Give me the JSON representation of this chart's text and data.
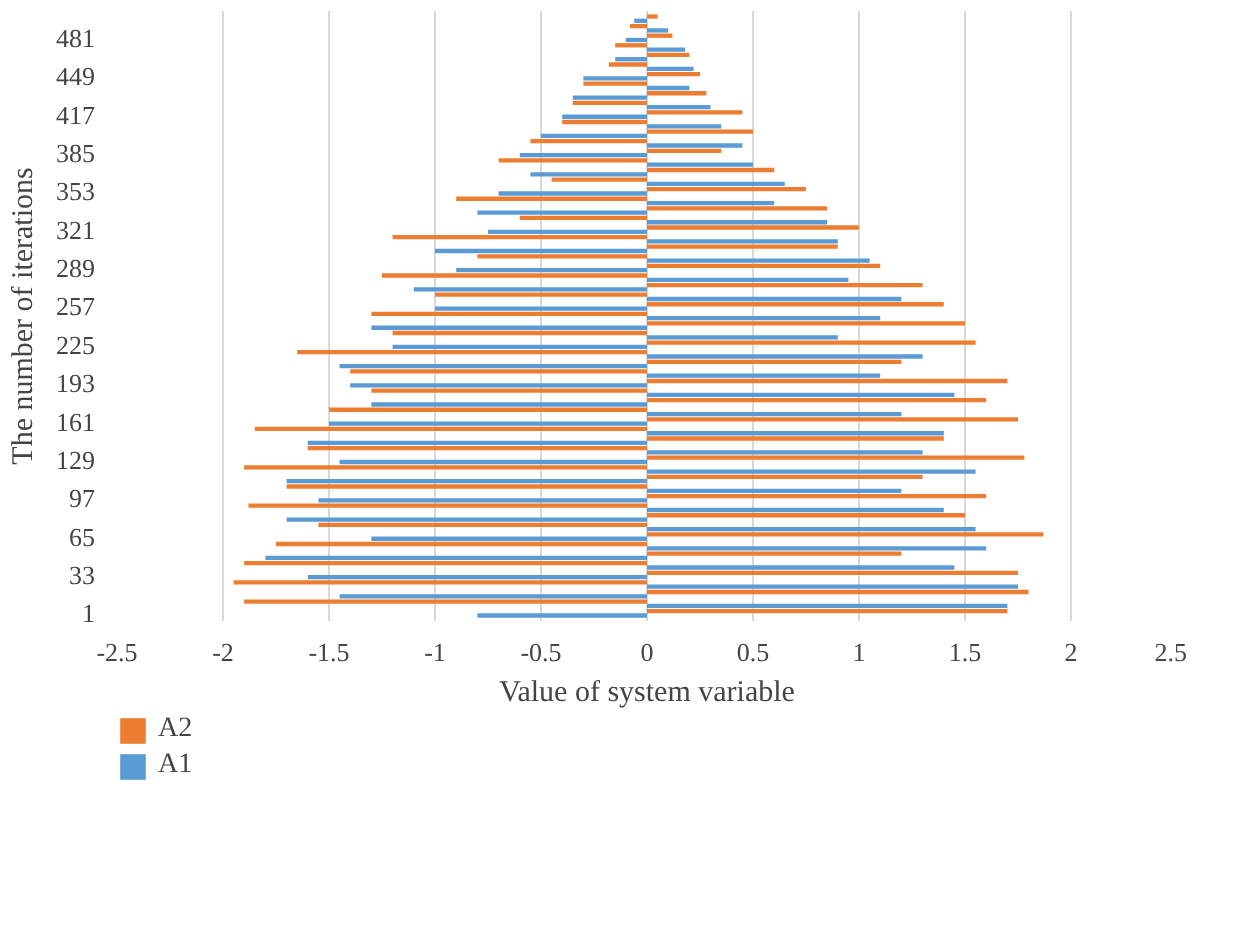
{
  "chart_data": {
    "type": "bar",
    "orientation": "horizontal",
    "xlabel": "Value of system variable",
    "ylabel": "The number of iterations",
    "categories": [
      null,
      null,
      "481",
      null,
      null,
      null,
      "449",
      null,
      null,
      null,
      "417",
      null,
      null,
      null,
      "385",
      null,
      null,
      null,
      "353",
      null,
      null,
      null,
      "321",
      null,
      null,
      null,
      "289",
      null,
      null,
      null,
      "257",
      null,
      null,
      null,
      "225",
      null,
      null,
      null,
      "193",
      null,
      null,
      null,
      "161",
      null,
      null,
      null,
      "129",
      null,
      null,
      null,
      "97",
      null,
      null,
      null,
      "65",
      null,
      null,
      null,
      "33",
      null,
      null,
      null,
      "1"
    ],
    "series": [
      {
        "name": "A2",
        "color": "#ed7d31",
        "values": [
          0.05,
          -0.08,
          0.12,
          -0.15,
          0.2,
          -0.18,
          0.25,
          -0.3,
          0.28,
          -0.35,
          0.45,
          -0.4,
          0.5,
          -0.55,
          0.35,
          -0.7,
          0.6,
          -0.45,
          0.75,
          -0.9,
          0.85,
          -0.6,
          1.0,
          -1.2,
          0.9,
          -0.8,
          1.1,
          -1.25,
          1.3,
          -1.0,
          1.4,
          -1.3,
          1.5,
          -1.2,
          1.55,
          -1.65,
          1.2,
          -1.4,
          1.7,
          -1.3,
          1.6,
          -1.5,
          1.75,
          -1.85,
          1.4,
          -1.6,
          1.78,
          -1.9,
          1.3,
          -1.7,
          1.6,
          -1.88,
          1.5,
          -1.55,
          1.87,
          -1.75,
          1.2,
          -1.9,
          1.75,
          -1.95,
          1.8,
          -1.9,
          1.7
        ]
      },
      {
        "name": "A1",
        "color": "#5b9bd5",
        "values": [
          -0.06,
          0.1,
          -0.1,
          0.18,
          -0.15,
          0.22,
          -0.3,
          0.2,
          -0.35,
          0.3,
          -0.4,
          0.35,
          -0.5,
          0.45,
          -0.6,
          0.5,
          -0.55,
          0.65,
          -0.7,
          0.6,
          -0.8,
          0.85,
          -0.75,
          0.9,
          -1.0,
          1.05,
          -0.9,
          0.95,
          -1.1,
          1.2,
          -1.0,
          1.1,
          -1.3,
          0.9,
          -1.2,
          1.3,
          -1.45,
          1.1,
          -1.4,
          1.45,
          -1.3,
          1.2,
          -1.5,
          1.4,
          -1.6,
          1.3,
          -1.45,
          1.55,
          -1.7,
          1.2,
          -1.55,
          1.4,
          -1.7,
          1.55,
          -1.3,
          1.6,
          -1.8,
          1.45,
          -1.6,
          1.75,
          -1.45,
          1.7,
          -0.8
        ]
      }
    ],
    "xlim": [
      -2.5,
      2.5
    ],
    "xticks": [
      -2.5,
      -2,
      -1.5,
      -1,
      -0.5,
      0,
      0.5,
      1,
      1.5,
      2,
      2.5
    ],
    "grid": "x",
    "legend": "bottom left"
  }
}
